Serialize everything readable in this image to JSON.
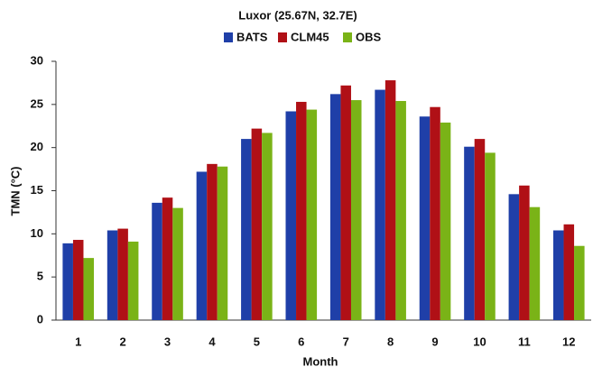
{
  "chart_data": {
    "type": "bar",
    "title": "Luxor (25.67N, 32.7E)",
    "x_label": "Month",
    "y_label": "TMN (°C)",
    "categories": [
      "1",
      "2",
      "3",
      "4",
      "5",
      "6",
      "7",
      "8",
      "9",
      "10",
      "11",
      "12"
    ],
    "series": [
      {
        "name": "BATS",
        "color": "#1f3fa8",
        "values": [
          8.9,
          10.4,
          13.6,
          17.2,
          21.0,
          24.2,
          26.2,
          26.7,
          23.6,
          20.1,
          14.6,
          10.4
        ]
      },
      {
        "name": "CLM45",
        "color": "#b01016",
        "values": [
          9.3,
          10.6,
          14.2,
          18.1,
          22.2,
          25.3,
          27.2,
          27.8,
          24.7,
          21.0,
          15.6,
          11.1
        ]
      },
      {
        "name": "OBS",
        "color": "#7ab317",
        "values": [
          7.2,
          9.1,
          13.0,
          17.8,
          21.7,
          24.4,
          25.5,
          25.4,
          22.9,
          19.4,
          13.1,
          8.6
        ]
      }
    ],
    "ylim": [
      0,
      30
    ],
    "yticks": [
      0,
      5,
      10,
      15,
      20,
      25,
      30
    ],
    "grid": false
  }
}
